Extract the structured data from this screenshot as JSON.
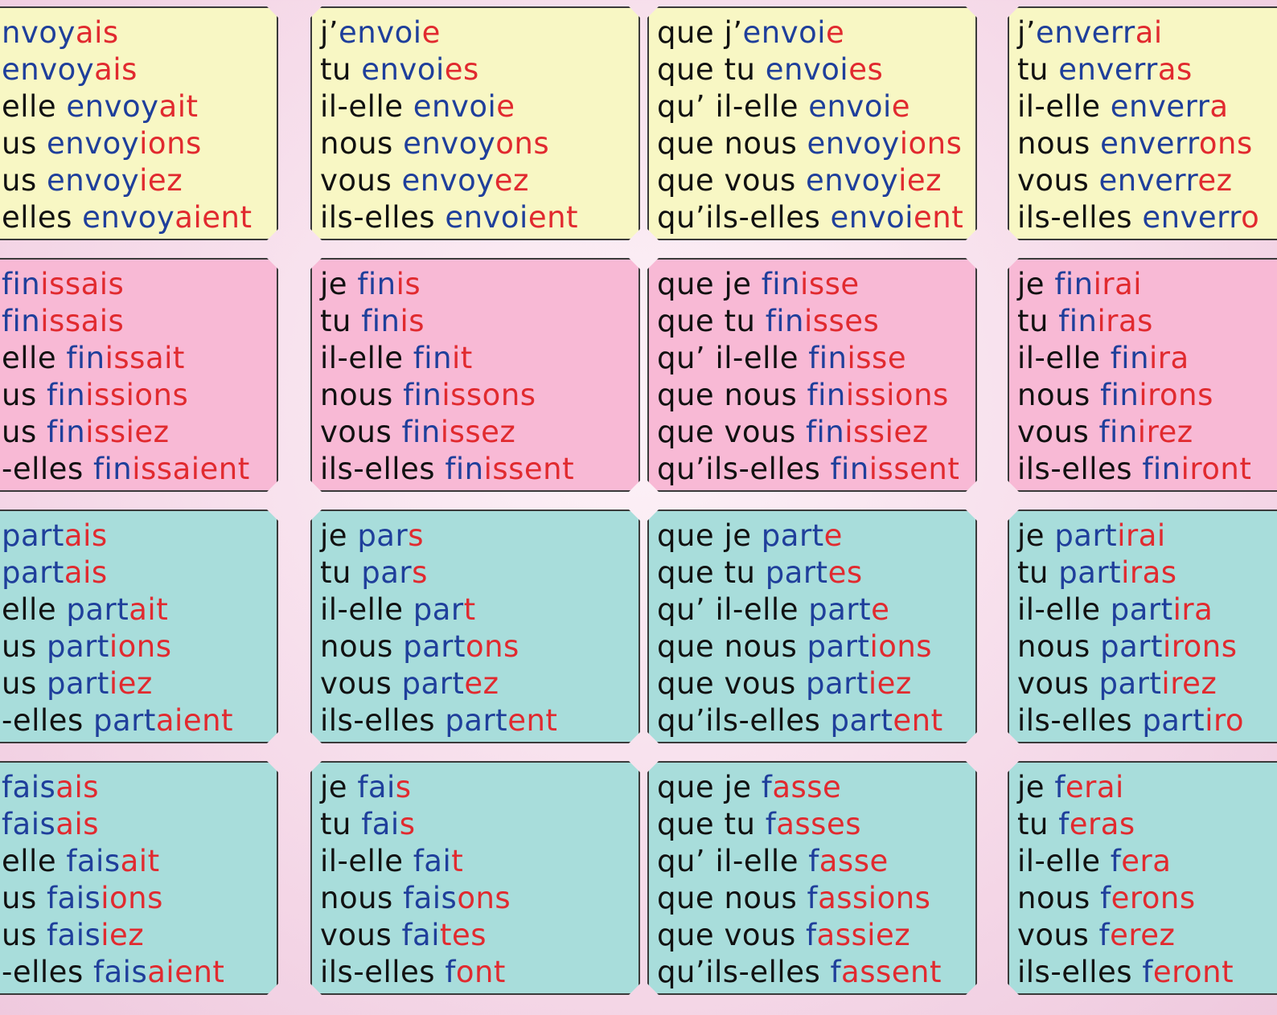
{
  "rows": [
    {
      "color": "yellow",
      "cards": [
        [
          [
            "",
            "nvoy",
            "ais"
          ],
          [
            "",
            "envoy",
            "ais"
          ],
          [
            "elle ",
            "envoy",
            "ait"
          ],
          [
            "us ",
            "envoy",
            "ions"
          ],
          [
            "us ",
            "envoy",
            "iez"
          ],
          [
            "elles ",
            "envoy",
            "aient"
          ]
        ],
        [
          [
            "j’",
            "envoi",
            "e"
          ],
          [
            "tu ",
            "envoi",
            "es"
          ],
          [
            "il-elle ",
            "envoi",
            "e"
          ],
          [
            "nous ",
            "envoy",
            "ons"
          ],
          [
            "vous ",
            "envoy",
            "ez"
          ],
          [
            "ils-elles ",
            "envoi",
            "ent"
          ]
        ],
        [
          [
            "que j’",
            "envoi",
            "e"
          ],
          [
            "que tu ",
            "envoi",
            "es"
          ],
          [
            "qu’ il-elle ",
            "envoi",
            "e"
          ],
          [
            "que nous ",
            "envoy",
            "ions"
          ],
          [
            "que vous ",
            "envoy",
            "iez"
          ],
          [
            "qu’ils-elles ",
            "envoi",
            "ent"
          ]
        ],
        [
          [
            "j’",
            "enverr",
            "ai"
          ],
          [
            "tu ",
            "enverr",
            "as"
          ],
          [
            "il-elle ",
            "enverr",
            "a"
          ],
          [
            "nous ",
            "enverr",
            "ons"
          ],
          [
            "vous ",
            "enverr",
            "ez"
          ],
          [
            "ils-elles ",
            "enverr",
            "o"
          ]
        ]
      ]
    },
    {
      "color": "pink",
      "cards": [
        [
          [
            "",
            "fin",
            "issais"
          ],
          [
            "",
            "fin",
            "issais"
          ],
          [
            "elle ",
            "fin",
            "issait"
          ],
          [
            "us ",
            "fin",
            "issions"
          ],
          [
            "us ",
            "fin",
            "issiez"
          ],
          [
            "-elles ",
            "fin",
            "issaient"
          ]
        ],
        [
          [
            "je ",
            "fin",
            "is"
          ],
          [
            "tu ",
            "fin",
            "is"
          ],
          [
            "il-elle ",
            "fin",
            "it"
          ],
          [
            "nous ",
            "fin",
            "issons"
          ],
          [
            "vous ",
            "fin",
            "issez"
          ],
          [
            "ils-elles ",
            "fin",
            "issent"
          ]
        ],
        [
          [
            "que je ",
            "fin",
            "isse"
          ],
          [
            "que tu ",
            "fin",
            "isses"
          ],
          [
            "qu’ il-elle ",
            "fin",
            "isse"
          ],
          [
            "que nous ",
            "fin",
            "issions"
          ],
          [
            "que vous ",
            "fin",
            "issiez"
          ],
          [
            "qu’ils-elles ",
            "fin",
            "issent"
          ]
        ],
        [
          [
            "je ",
            "fin",
            "irai"
          ],
          [
            "tu ",
            "fin",
            "iras"
          ],
          [
            "il-elle ",
            "fin",
            "ira"
          ],
          [
            "nous ",
            "fin",
            "irons"
          ],
          [
            "vous ",
            "fin",
            "irez"
          ],
          [
            "ils-elles ",
            "fin",
            "iront"
          ]
        ]
      ]
    },
    {
      "color": "teal",
      "cards": [
        [
          [
            "",
            "part",
            "ais"
          ],
          [
            "",
            "part",
            "ais"
          ],
          [
            "elle ",
            "part",
            "ait"
          ],
          [
            "us ",
            "part",
            "ions"
          ],
          [
            "us ",
            "part",
            "iez"
          ],
          [
            "-elles ",
            "part",
            "aient"
          ]
        ],
        [
          [
            "je ",
            "par",
            "s"
          ],
          [
            "tu ",
            "par",
            "s"
          ],
          [
            "il-elle ",
            "par",
            "t"
          ],
          [
            "nous ",
            "part",
            "ons"
          ],
          [
            "vous ",
            "part",
            "ez"
          ],
          [
            "ils-elles ",
            "part",
            "ent"
          ]
        ],
        [
          [
            "que je ",
            "part",
            "e"
          ],
          [
            "que tu ",
            "part",
            "es"
          ],
          [
            "qu’ il-elle ",
            "part",
            "e"
          ],
          [
            "que nous ",
            "part",
            "ions"
          ],
          [
            "que vous ",
            "part",
            "iez"
          ],
          [
            "qu’ils-elles ",
            "part",
            "ent"
          ]
        ],
        [
          [
            "je ",
            "part",
            "irai"
          ],
          [
            "tu ",
            "part",
            "iras"
          ],
          [
            "il-elle ",
            "part",
            "ira"
          ],
          [
            "nous ",
            "part",
            "irons"
          ],
          [
            "vous ",
            "part",
            "irez"
          ],
          [
            "ils-elles ",
            "part",
            "iro"
          ]
        ]
      ]
    },
    {
      "color": "teal",
      "cards": [
        [
          [
            "",
            "fais",
            "ais"
          ],
          [
            "",
            "fais",
            "ais"
          ],
          [
            "elle ",
            "fais",
            "ait"
          ],
          [
            "us ",
            "fais",
            "ions"
          ],
          [
            "us ",
            "fais",
            "iez"
          ],
          [
            "-elles ",
            "fais",
            "aient"
          ]
        ],
        [
          [
            "je ",
            "fai",
            "s"
          ],
          [
            "tu ",
            "fai",
            "s"
          ],
          [
            "il-elle ",
            "fai",
            "t"
          ],
          [
            "nous ",
            "fais",
            "ons"
          ],
          [
            "vous ",
            "fai",
            "tes"
          ],
          [
            "ils-elles ",
            "f",
            "ont"
          ]
        ],
        [
          [
            "que je ",
            "f",
            "asse"
          ],
          [
            "que tu ",
            "f",
            "asses"
          ],
          [
            "qu’ il-elle ",
            "f",
            "asse"
          ],
          [
            "que nous ",
            "f",
            "assions"
          ],
          [
            "que vous ",
            "f",
            "assiez"
          ],
          [
            "qu’ils-elles ",
            "f",
            "assent"
          ]
        ],
        [
          [
            "je ",
            "f",
            "erai"
          ],
          [
            "tu ",
            "f",
            "eras"
          ],
          [
            "il-elle ",
            "f",
            "era"
          ],
          [
            "nous ",
            "f",
            "erons"
          ],
          [
            "vous ",
            "f",
            "erez"
          ],
          [
            "ils-elles ",
            "f",
            "eront"
          ]
        ]
      ]
    }
  ]
}
